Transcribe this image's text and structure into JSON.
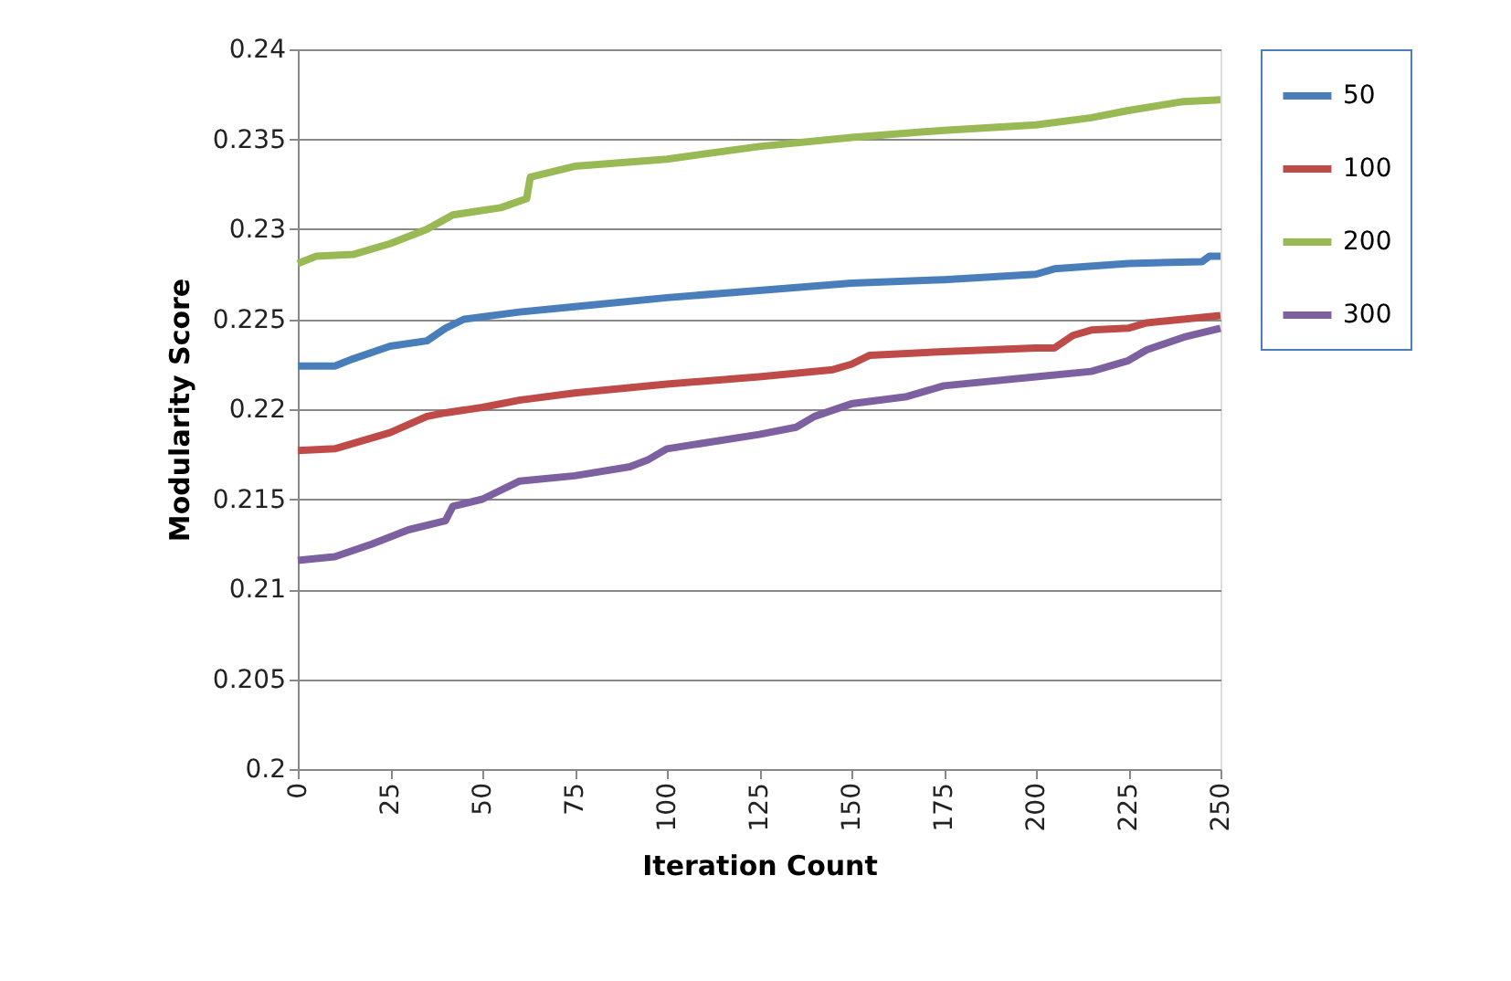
{
  "chart_data": {
    "type": "line",
    "xlabel": "Iteration Count",
    "ylabel": "Modularity Score",
    "xlim": [
      0,
      250
    ],
    "xticks": [
      0,
      25,
      50,
      75,
      100,
      125,
      150,
      175,
      200,
      225,
      250
    ],
    "ylim": [
      0.2,
      0.24
    ],
    "yticks": [
      0.2,
      0.205,
      0.21,
      0.215,
      0.22,
      0.225,
      0.23,
      0.235,
      0.24
    ],
    "grid": "y",
    "legend": "right",
    "marker": "none",
    "line_style": "solid",
    "series": [
      {
        "name": "50",
        "color": "#4a7ebb",
        "x": [
          0,
          10,
          15,
          25,
          35,
          40,
          45,
          60,
          75,
          100,
          125,
          150,
          175,
          200,
          205,
          225,
          245,
          247,
          250
        ],
        "values": [
          0.2224,
          0.2224,
          0.2228,
          0.2235,
          0.2238,
          0.2245,
          0.225,
          0.2254,
          0.2257,
          0.2262,
          0.2266,
          0.227,
          0.2272,
          0.2275,
          0.2278,
          0.2281,
          0.2282,
          0.2285,
          0.2285
        ]
      },
      {
        "name": "100",
        "color": "#be4b48",
        "x": [
          0,
          10,
          25,
          35,
          40,
          50,
          60,
          75,
          100,
          125,
          145,
          150,
          155,
          175,
          200,
          205,
          210,
          215,
          225,
          230,
          250
        ],
        "values": [
          0.2177,
          0.2178,
          0.2187,
          0.2196,
          0.2198,
          0.2201,
          0.2205,
          0.2209,
          0.2214,
          0.2218,
          0.2222,
          0.2225,
          0.223,
          0.2232,
          0.2234,
          0.2234,
          0.2241,
          0.2244,
          0.2245,
          0.2248,
          0.2252
        ]
      },
      {
        "name": "200",
        "color": "#98b954",
        "x": [
          0,
          5,
          15,
          25,
          35,
          42,
          55,
          62,
          63,
          75,
          100,
          125,
          150,
          175,
          200,
          215,
          225,
          240,
          250
        ],
        "values": [
          0.2281,
          0.2285,
          0.2286,
          0.2292,
          0.23,
          0.2308,
          0.2312,
          0.2317,
          0.2329,
          0.2335,
          0.2339,
          0.2346,
          0.2351,
          0.2355,
          0.2358,
          0.2362,
          0.2366,
          0.2371,
          0.2372
        ]
      },
      {
        "name": "300",
        "color": "#7d60a0",
        "x": [
          0,
          10,
          20,
          30,
          40,
          42,
          50,
          60,
          75,
          90,
          95,
          100,
          125,
          135,
          140,
          150,
          165,
          175,
          200,
          215,
          225,
          230,
          240,
          250
        ],
        "values": [
          0.2116,
          0.2118,
          0.2125,
          0.2133,
          0.2138,
          0.2146,
          0.215,
          0.216,
          0.2163,
          0.2168,
          0.2172,
          0.2178,
          0.2186,
          0.219,
          0.2196,
          0.2203,
          0.2207,
          0.2213,
          0.2218,
          0.2221,
          0.2227,
          0.2233,
          0.224,
          0.2245
        ]
      }
    ]
  }
}
